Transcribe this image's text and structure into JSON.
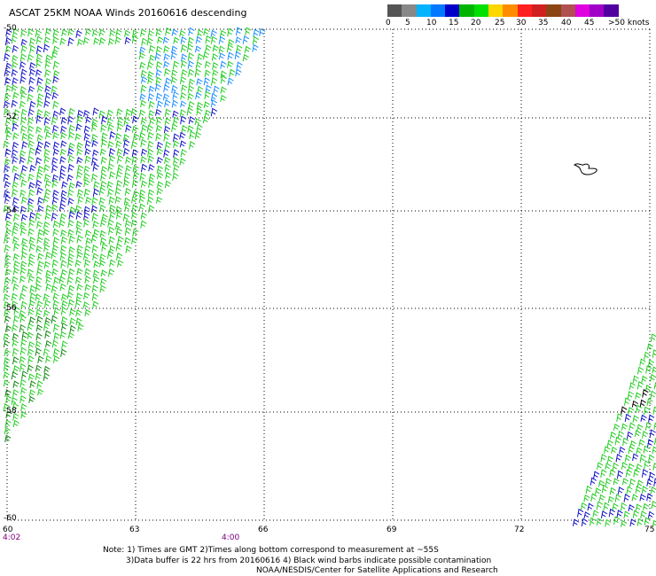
{
  "title": "ASCAT 25KM NOAA Winds 20160616 descending",
  "legend": {
    "colors": [
      "#555555",
      "#888888",
      "#00b4ff",
      "#0078ff",
      "#0000c8",
      "#00b400",
      "#00e000",
      "#ffd700",
      "#ff8c00",
      "#ff2020",
      "#d02020",
      "#8b4513",
      "#b05050",
      "#e000e0",
      "#a000c8",
      "#5000a0"
    ],
    "labels": [
      "0",
      "5",
      "10",
      "15",
      "20",
      "25",
      "30",
      "35",
      "40",
      "45",
      ">50 knots"
    ]
  },
  "map": {
    "lat_labels": [
      "-50",
      "-52",
      "-54",
      "-56",
      "-58",
      "-60"
    ],
    "lon_labels": [
      "60",
      "63",
      "66",
      "69",
      "72",
      "75"
    ],
    "lat_range": [
      -60,
      -50
    ],
    "lon_range": [
      60,
      75
    ],
    "grid": "dotted",
    "times": [
      "4:02",
      "4:00"
    ],
    "land_feature": "small island near 73E, 53S"
  },
  "notes": [
    "Note: 1) Times are GMT 2)Times along bottom correspond to measurement at ~55S",
    "3)Data buffer is 22 hrs from 20160616 4) Black wind barbs indicate possible contamination",
    "NOAA/NESDIS/Center for Satellite Applications and Research"
  ]
}
